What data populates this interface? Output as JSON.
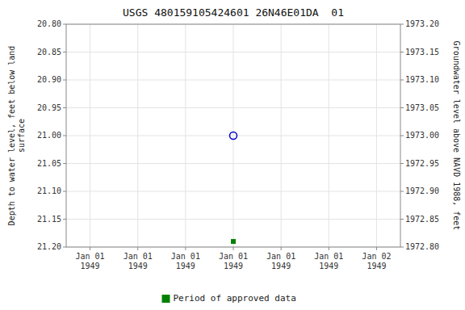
{
  "chart_data": {
    "type": "scatter",
    "title": "USGS 480159105424601 26N46E01DA  01",
    "y_label": "Depth to water level, feet below land\nsurface",
    "y2_label": "Groundwater level above NAVD 1988, feet",
    "categories": [
      "Jan 01\n1949",
      "Jan 01\n1949",
      "Jan 01\n1949",
      "Jan 01\n1949",
      "Jan 01\n1949",
      "Jan 01\n1949",
      "Jan 02\n1949"
    ],
    "series": [
      {
        "color": "#0000cc",
        "marker": "circle",
        "values": [
          null,
          null,
          null,
          21.0,
          null,
          null,
          null
        ]
      },
      {
        "name": "Period of approved data",
        "color": "#008000",
        "marker": "square",
        "values": [
          null,
          null,
          null,
          21.19,
          null,
          null,
          null
        ]
      }
    ],
    "ylim": [
      21.2,
      20.8
    ],
    "yticks": [
      {
        "value": 20.8,
        "label": "20.80"
      },
      {
        "value": 20.85,
        "label": "20.85"
      },
      {
        "value": 20.9,
        "label": "20.90"
      },
      {
        "value": 20.95,
        "label": "20.95"
      },
      {
        "value": 21.0,
        "label": "21.00"
      },
      {
        "value": 21.05,
        "label": "21.05"
      },
      {
        "value": 21.1,
        "label": "21.10"
      },
      {
        "value": 21.15,
        "label": "21.15"
      },
      {
        "value": 21.2,
        "label": "21.20"
      }
    ],
    "y2lim": [
      1972.8,
      1973.2
    ],
    "y2ticks": [
      {
        "value": 1973.2,
        "label": "1973.20"
      },
      {
        "value": 1973.15,
        "label": "1973.15"
      },
      {
        "value": 1973.1,
        "label": "1973.10"
      },
      {
        "value": 1973.05,
        "label": "1973.05"
      },
      {
        "value": 1973.0,
        "label": "1973.00"
      },
      {
        "value": 1972.95,
        "label": "1972.95"
      },
      {
        "value": 1972.9,
        "label": "1972.90"
      },
      {
        "value": 1972.85,
        "label": "1972.85"
      },
      {
        "value": 1972.8,
        "label": "1972.80"
      }
    ],
    "grid": true,
    "legend": "bottom"
  }
}
